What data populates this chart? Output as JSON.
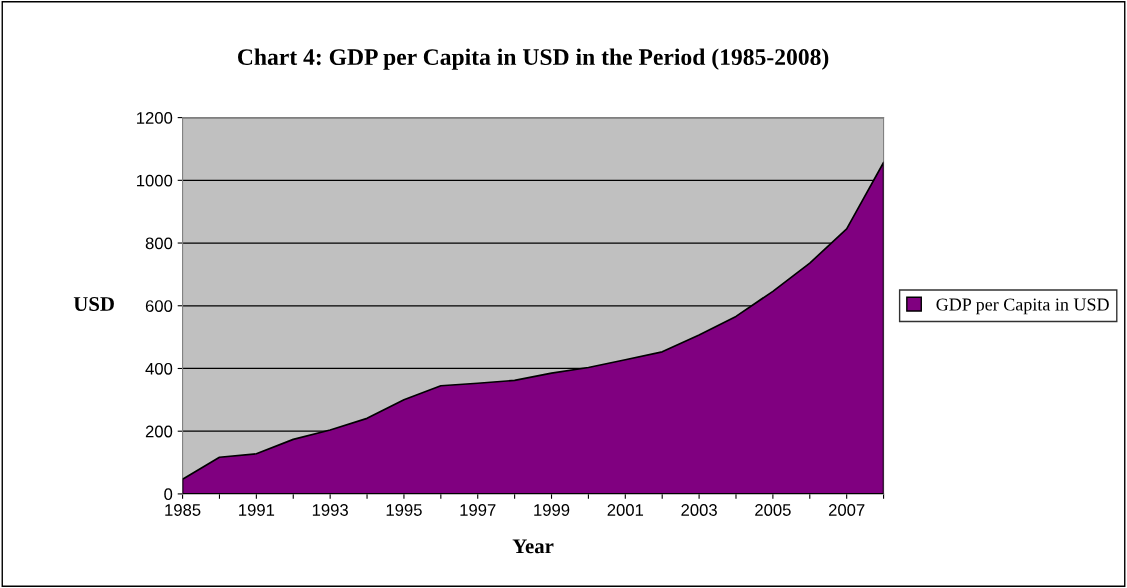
{
  "chart_data": {
    "type": "area",
    "title": "Chart 4: GDP per Capita in USD in the Period (1985-2008)",
    "xlabel": "Year",
    "ylabel": "USD",
    "categories": [
      "1985",
      null,
      "1991",
      null,
      "1993",
      null,
      "1995",
      null,
      "1997",
      null,
      "1999",
      null,
      "2001",
      null,
      "2003",
      null,
      "2005",
      null,
      "2007",
      null
    ],
    "series": [
      {
        "name": "GDP per Capita in USD",
        "color": "#800080",
        "values": [
          47,
          117,
          128,
          174,
          204,
          241,
          300,
          345,
          353,
          362,
          385,
          403,
          428,
          453,
          507,
          566,
          646,
          736,
          845,
          1057
        ]
      }
    ],
    "ylim": [
      0,
      1200
    ],
    "yticks": [
      0,
      200,
      400,
      600,
      800,
      1000,
      1200
    ],
    "grid": "y",
    "legend": "right"
  }
}
